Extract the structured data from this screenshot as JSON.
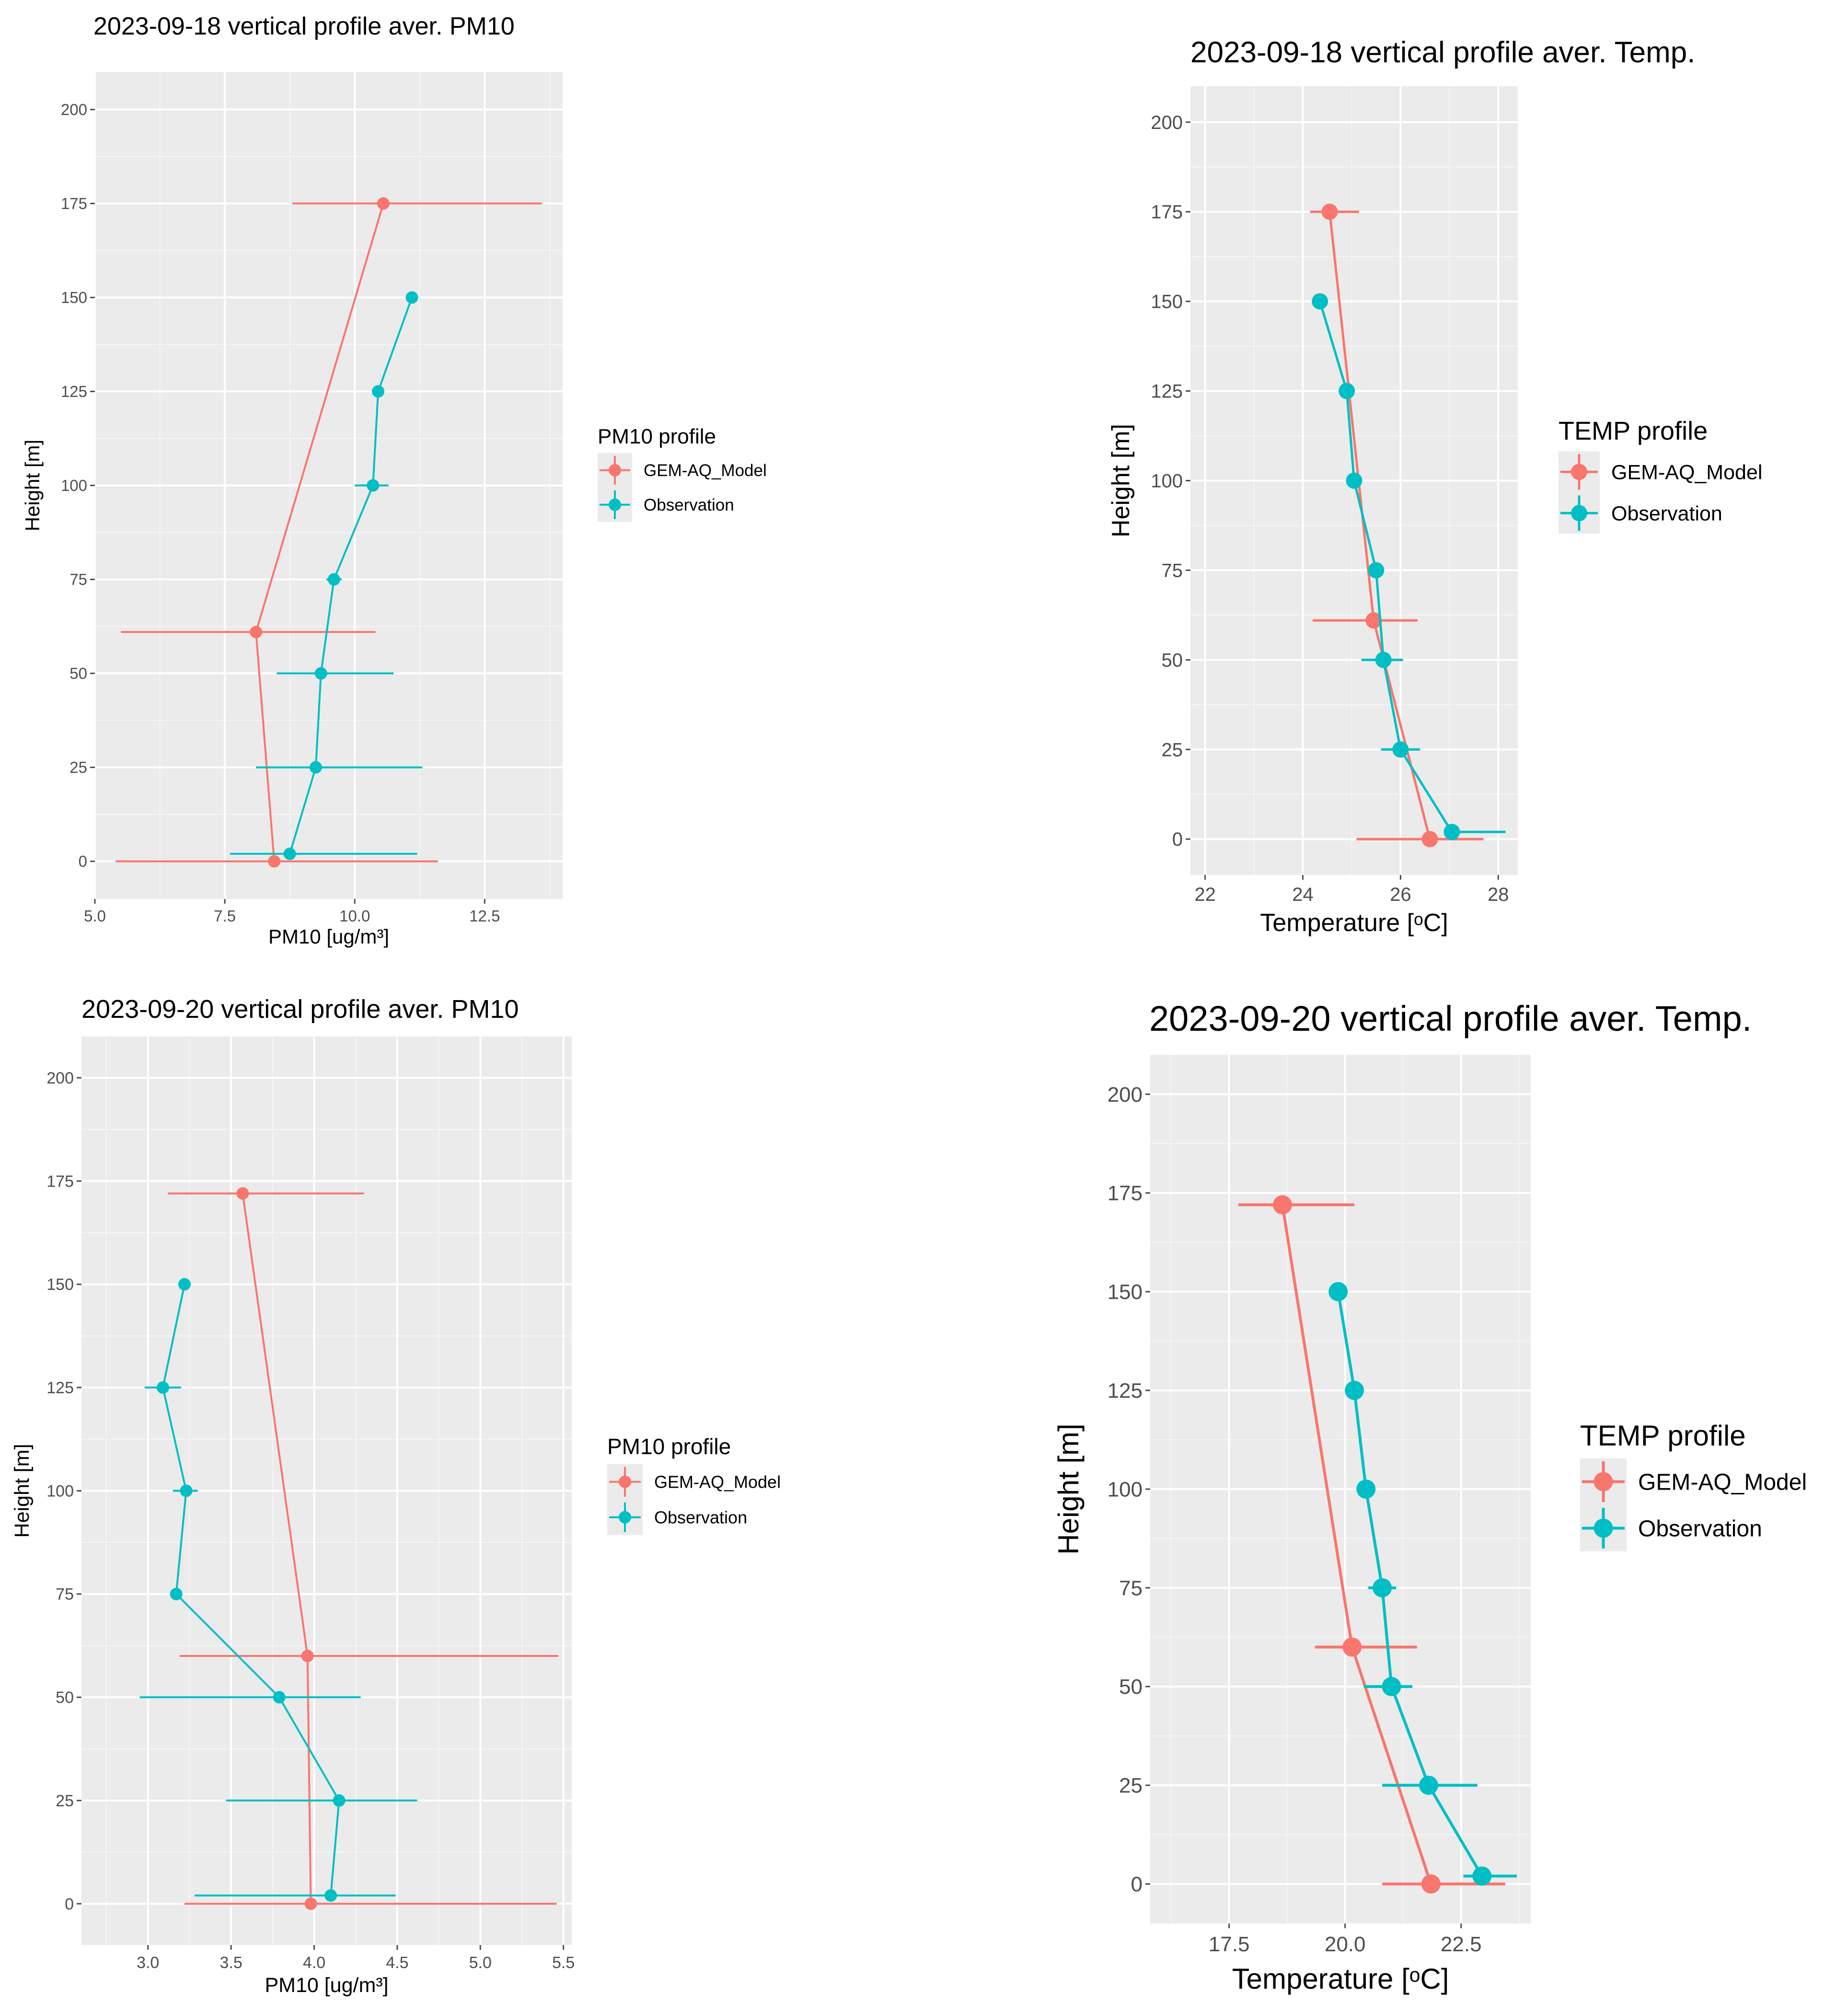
{
  "colors": {
    "panel_bg": "#EBEBEB",
    "grid_major": "#FFFFFF",
    "grid_minor": "#F5F5F5",
    "model": "#F8766D",
    "observation": "#00BFC4",
    "legend_key_bg": "#EBEBEB",
    "tick": "#4D4D4D"
  },
  "chart_data": [
    {
      "type": "scatter",
      "title": "2023-09-18 vertical profile aver. PM10",
      "xlabel": "PM10 [ug/m³]",
      "ylabel": "Height [m]",
      "xlim": [
        5.0,
        14.0
      ],
      "ylim": [
        -10,
        210
      ],
      "x_ticks": [
        5.0,
        7.5,
        10.0,
        12.5
      ],
      "x_tick_labels": [
        "5.0",
        "7.5",
        "10.0",
        "12.5"
      ],
      "y_ticks": [
        0,
        25,
        50,
        75,
        100,
        125,
        150,
        175,
        200
      ],
      "y_tick_labels": [
        "0",
        "25",
        "50",
        "75",
        "100",
        "125",
        "150",
        "175",
        "200"
      ],
      "legend": {
        "title": "PM10 profile",
        "entries": [
          "GEM-AQ_Model",
          "Observation"
        ],
        "placement": "right"
      },
      "series": [
        {
          "name": "GEM-AQ_Model",
          "x": [
            8.45,
            8.1,
            10.55
          ],
          "y": [
            0,
            61,
            175
          ],
          "xerr_low": [
            5.4,
            5.5,
            8.8
          ],
          "xerr_high": [
            11.6,
            10.4,
            13.6
          ]
        },
        {
          "name": "Observation",
          "x": [
            8.75,
            9.25,
            9.35,
            9.6,
            10.35,
            10.45,
            11.1
          ],
          "y": [
            2,
            25,
            50,
            75,
            100,
            125,
            150
          ],
          "xerr_low": [
            7.6,
            8.1,
            8.5,
            9.45,
            10.0,
            10.45,
            11.1
          ],
          "xerr_high": [
            11.2,
            11.3,
            10.75,
            9.75,
            10.65,
            10.45,
            11.1
          ]
        }
      ]
    },
    {
      "type": "scatter",
      "title": "2023-09-18 vertical profile aver. Temp.",
      "xlabel": "Temperature [ᵒC]",
      "ylabel": "Height [m]",
      "xlim": [
        21.7,
        28.4
      ],
      "ylim": [
        -10,
        210
      ],
      "x_ticks": [
        22,
        24,
        26,
        28
      ],
      "x_tick_labels": [
        "22",
        "24",
        "26",
        "28"
      ],
      "y_ticks": [
        0,
        25,
        50,
        75,
        100,
        125,
        150,
        175,
        200
      ],
      "y_tick_labels": [
        "0",
        "25",
        "50",
        "75",
        "100",
        "125",
        "150",
        "175",
        "200"
      ],
      "legend": {
        "title": "TEMP profile",
        "entries": [
          "GEM-AQ_Model",
          "Observation"
        ],
        "placement": "right"
      },
      "series": [
        {
          "name": "GEM-AQ_Model",
          "x": [
            26.6,
            25.45,
            24.55
          ],
          "y": [
            0,
            61,
            175
          ],
          "xerr_low": [
            25.1,
            24.2,
            24.15
          ],
          "xerr_high": [
            27.7,
            26.35,
            25.15
          ]
        },
        {
          "name": "Observation",
          "x": [
            27.05,
            26.0,
            25.65,
            25.5,
            25.05,
            24.9,
            24.35
          ],
          "y": [
            2,
            25,
            50,
            75,
            100,
            125,
            150
          ],
          "xerr_low": [
            26.9,
            25.6,
            25.2,
            25.4,
            24.95,
            24.8,
            24.35
          ],
          "xerr_high": [
            28.15,
            26.4,
            26.05,
            25.6,
            25.15,
            25.0,
            24.35
          ]
        }
      ]
    },
    {
      "type": "scatter",
      "title": "2023-09-20 vertical profile aver. PM10",
      "xlabel": "PM10 [ug/m³]",
      "ylabel": "Height [m]",
      "xlim": [
        2.6,
        5.55
      ],
      "ylim": [
        -10,
        210
      ],
      "x_ticks": [
        3.0,
        3.5,
        4.0,
        4.5,
        5.0,
        5.5
      ],
      "x_tick_labels": [
        "3.0",
        "3.5",
        "4.0",
        "4.5",
        "5.0",
        "5.5"
      ],
      "y_ticks": [
        0,
        25,
        50,
        75,
        100,
        125,
        150,
        175,
        200
      ],
      "y_tick_labels": [
        "0",
        "25",
        "50",
        "75",
        "100",
        "125",
        "150",
        "175",
        "200"
      ],
      "legend": {
        "title": "PM10 profile",
        "entries": [
          "GEM-AQ_Model",
          "Observation"
        ],
        "placement": "right"
      },
      "series": [
        {
          "name": "GEM-AQ_Model",
          "x": [
            3.98,
            3.96,
            3.57
          ],
          "y": [
            0,
            60,
            172
          ],
          "xerr_low": [
            3.22,
            3.19,
            3.12
          ],
          "xerr_high": [
            5.46,
            5.47,
            4.3
          ]
        },
        {
          "name": "Observation",
          "x": [
            4.1,
            4.15,
            3.79,
            3.17,
            3.23,
            3.09,
            3.22
          ],
          "y": [
            2,
            25,
            50,
            75,
            100,
            125,
            150
          ],
          "xerr_low": [
            3.28,
            3.47,
            2.95,
            3.17,
            3.15,
            2.98,
            3.22
          ],
          "xerr_high": [
            4.49,
            4.62,
            4.28,
            3.17,
            3.3,
            3.2,
            3.22
          ]
        }
      ]
    },
    {
      "type": "scatter",
      "title": "2023-09-20 vertical profile aver. Temp.",
      "xlabel": "Temperature [ᵒC]",
      "ylabel": "Height [m]",
      "xlim": [
        15.8,
        24.0
      ],
      "ylim": [
        -10,
        210
      ],
      "x_ticks": [
        17.5,
        20.0,
        22.5
      ],
      "x_tick_labels": [
        "17.5",
        "20.0",
        "22.5"
      ],
      "y_ticks": [
        0,
        25,
        50,
        75,
        100,
        125,
        150,
        175,
        200
      ],
      "y_tick_labels": [
        "0",
        "25",
        "50",
        "75",
        "100",
        "125",
        "150",
        "175",
        "200"
      ],
      "legend": {
        "title": "TEMP profile",
        "entries": [
          "GEM-AQ_Model",
          "Observation"
        ],
        "placement": "right"
      },
      "series": [
        {
          "name": "GEM-AQ_Model",
          "x": [
            21.85,
            20.15,
            18.65
          ],
          "y": [
            0,
            60,
            172
          ],
          "xerr_low": [
            20.8,
            19.35,
            17.7
          ],
          "xerr_high": [
            23.45,
            21.55,
            20.2
          ]
        },
        {
          "name": "Observation",
          "x": [
            22.95,
            21.8,
            21.0,
            20.8,
            20.45,
            20.2,
            19.85
          ],
          "y": [
            2,
            25,
            50,
            75,
            100,
            125,
            150
          ],
          "xerr_low": [
            22.55,
            20.8,
            20.4,
            20.5,
            20.45,
            20.2,
            19.85
          ],
          "xerr_high": [
            23.7,
            22.85,
            21.45,
            21.1,
            20.45,
            20.2,
            19.85
          ]
        }
      ]
    }
  ]
}
